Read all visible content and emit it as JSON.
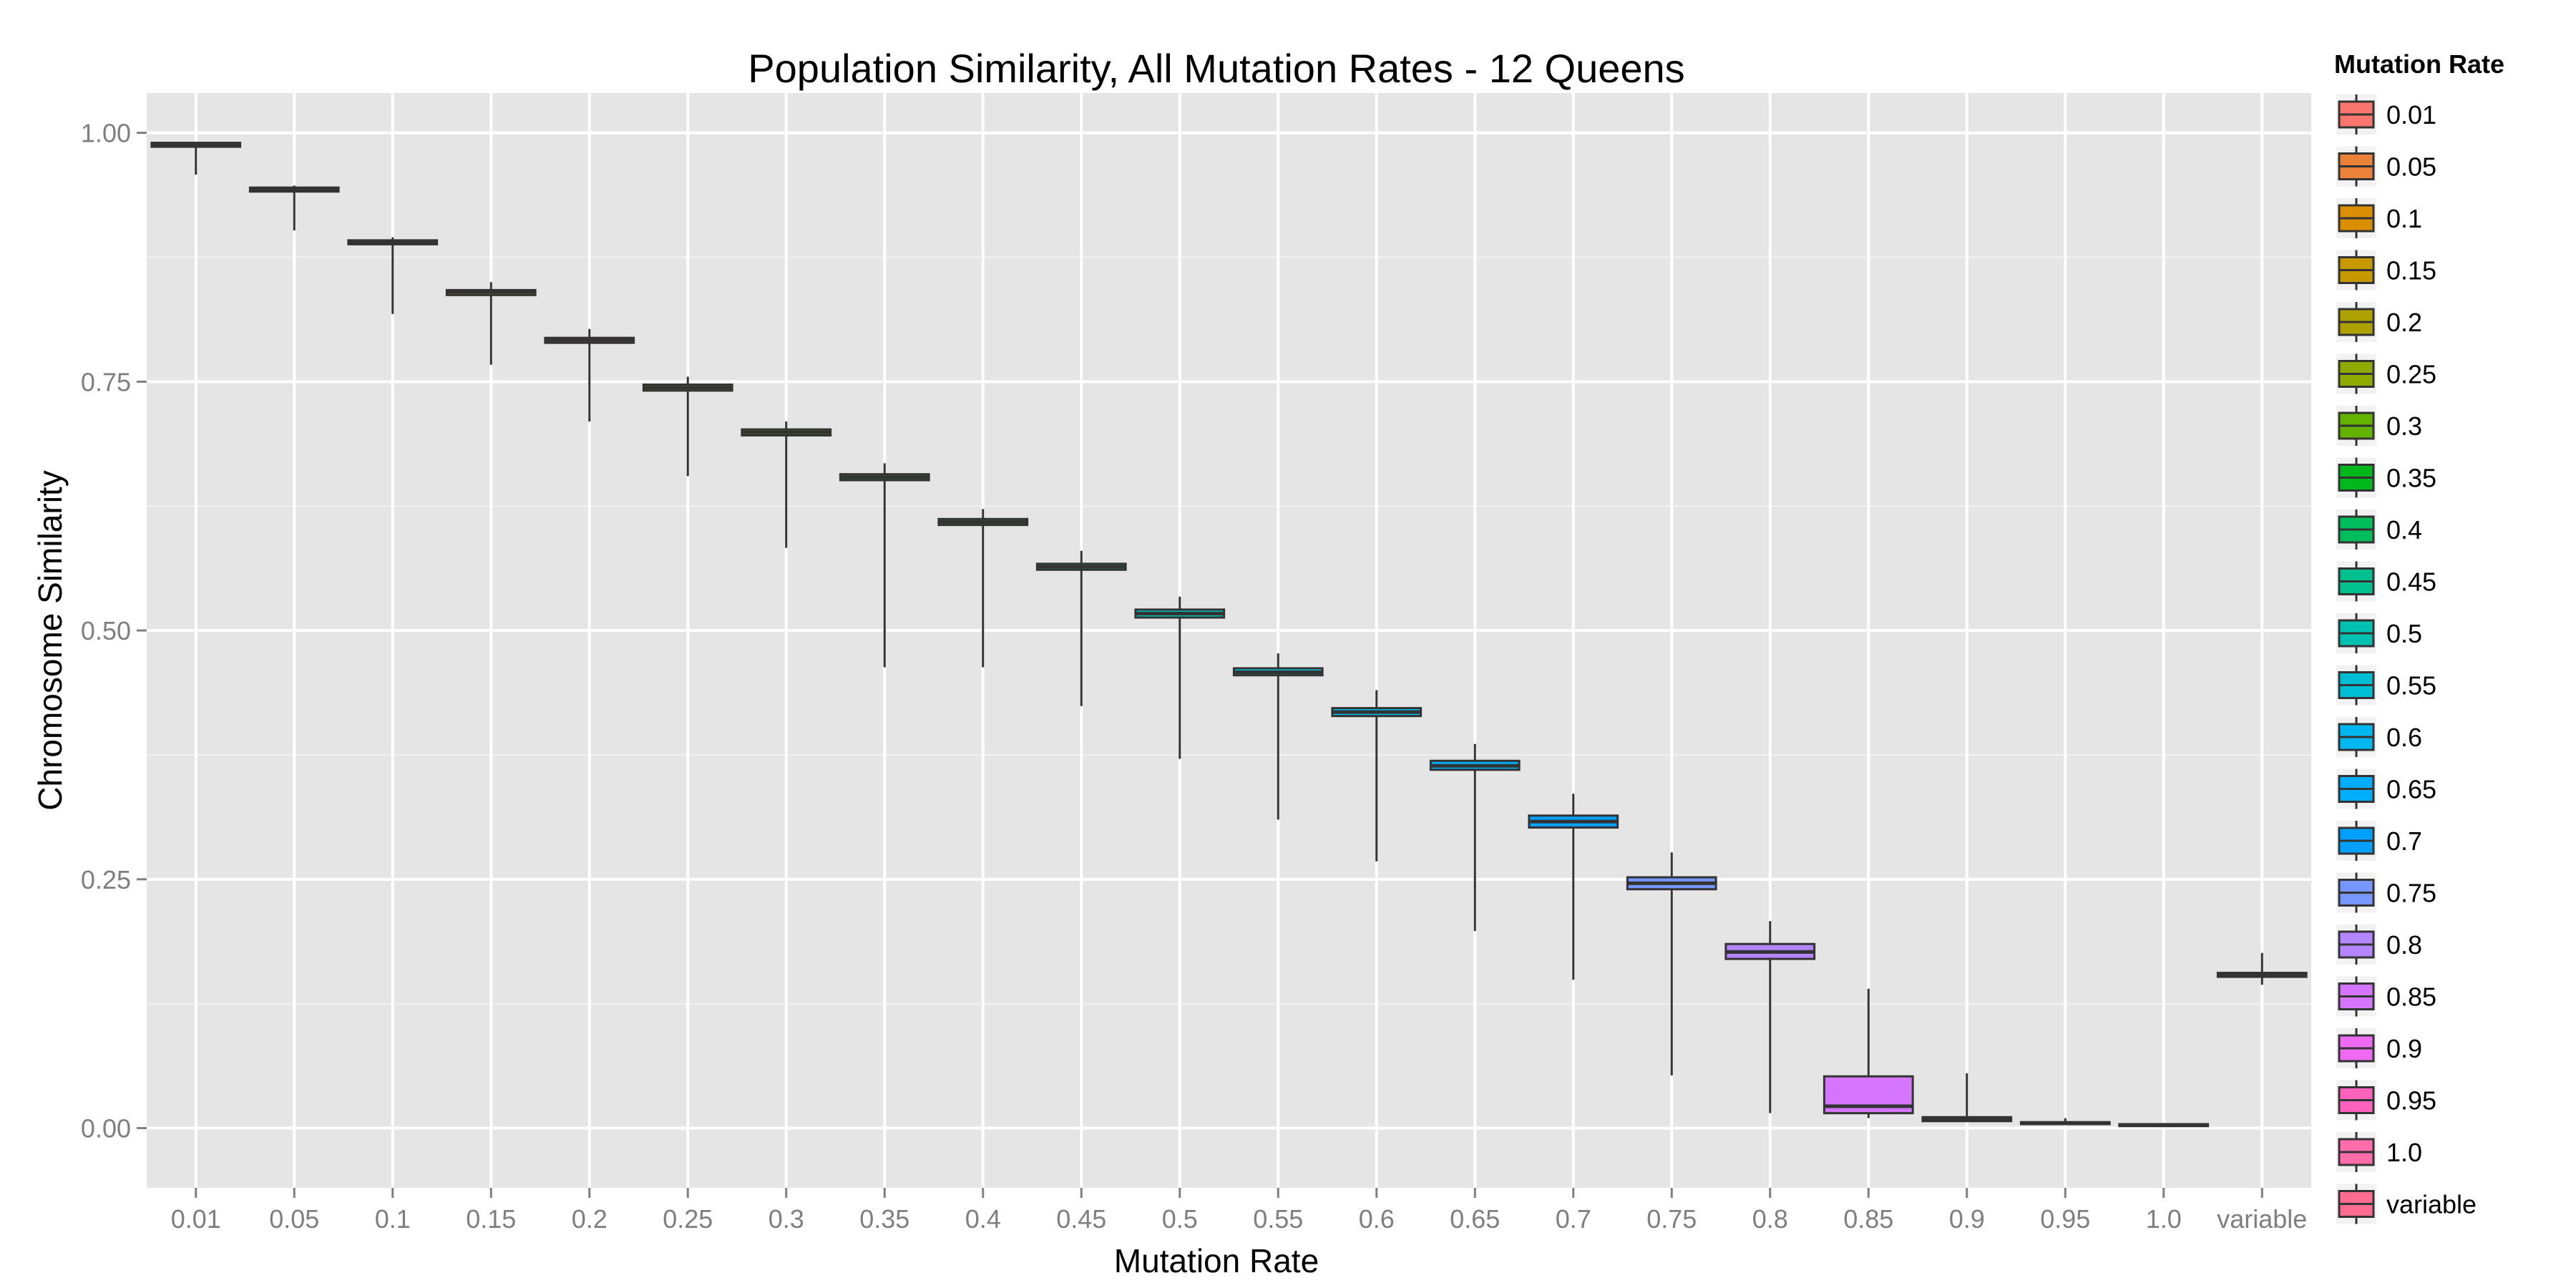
{
  "chart_data": {
    "type": "boxplot",
    "title": "Population Similarity, All Mutation Rates - 12 Queens",
    "xlabel": "Mutation Rate",
    "ylabel": "Chromosome Similarity",
    "ylim": [
      -0.06,
      1.04
    ],
    "yticks": [
      0.0,
      0.25,
      0.5,
      0.75,
      1.0
    ],
    "ytick_labels": [
      "0.00",
      "0.25",
      "0.50",
      "0.75",
      "1.00"
    ],
    "grid": true,
    "legend": {
      "title": "Mutation Rate",
      "position": "right"
    },
    "categories": [
      "0.01",
      "0.05",
      "0.1",
      "0.15",
      "0.2",
      "0.25",
      "0.3",
      "0.35",
      "0.4",
      "0.45",
      "0.5",
      "0.55",
      "0.6",
      "0.65",
      "0.7",
      "0.75",
      "0.8",
      "0.85",
      "0.9",
      "0.95",
      "1.0",
      "variable"
    ],
    "colors": [
      "#F8766D",
      "#EC8239",
      "#DB8E00",
      "#C79800",
      "#AEA200",
      "#8FAA00",
      "#64B200",
      "#00B81B",
      "#00BD5C",
      "#00C08D",
      "#00C1B2",
      "#00BFD4",
      "#00B8EF",
      "#00ADFA",
      "#00A0FF",
      "#7896FF",
      "#B385FF",
      "#D575FE",
      "#EE6AF1",
      "#FF62BC",
      "#FF6DAB",
      "#FF6C90"
    ],
    "boxes": [
      {
        "category": "0.01",
        "whisker_low": 0.958,
        "q1": 0.986,
        "median": 0.988,
        "q3": 0.99,
        "whisker_high": 0.991
      },
      {
        "category": "0.05",
        "whisker_low": 0.902,
        "q1": 0.941,
        "median": 0.943,
        "q3": 0.945,
        "whisker_high": 0.947
      },
      {
        "category": "0.1",
        "whisker_low": 0.818,
        "q1": 0.888,
        "median": 0.89,
        "q3": 0.892,
        "whisker_high": 0.895
      },
      {
        "category": "0.15",
        "whisker_low": 0.767,
        "q1": 0.837,
        "median": 0.84,
        "q3": 0.842,
        "whisker_high": 0.85
      },
      {
        "category": "0.2",
        "whisker_low": 0.71,
        "q1": 0.789,
        "median": 0.792,
        "q3": 0.794,
        "whisker_high": 0.803
      },
      {
        "category": "0.25",
        "whisker_low": 0.655,
        "q1": 0.741,
        "median": 0.744,
        "q3": 0.747,
        "whisker_high": 0.755
      },
      {
        "category": "0.3",
        "whisker_low": 0.583,
        "q1": 0.696,
        "median": 0.699,
        "q3": 0.702,
        "whisker_high": 0.71
      },
      {
        "category": "0.35",
        "whisker_low": 0.463,
        "q1": 0.651,
        "median": 0.654,
        "q3": 0.657,
        "whisker_high": 0.668
      },
      {
        "category": "0.4",
        "whisker_low": 0.463,
        "q1": 0.606,
        "median": 0.609,
        "q3": 0.612,
        "whisker_high": 0.622
      },
      {
        "category": "0.45",
        "whisker_low": 0.424,
        "q1": 0.561,
        "median": 0.564,
        "q3": 0.567,
        "whisker_high": 0.58
      },
      {
        "category": "0.5",
        "whisker_low": 0.371,
        "q1": 0.513,
        "median": 0.517,
        "q3": 0.521,
        "whisker_high": 0.534
      },
      {
        "category": "0.55",
        "whisker_low": 0.31,
        "q1": 0.455,
        "median": 0.458,
        "q3": 0.462,
        "whisker_high": 0.477
      },
      {
        "category": "0.6",
        "whisker_low": 0.268,
        "q1": 0.414,
        "median": 0.418,
        "q3": 0.422,
        "whisker_high": 0.44
      },
      {
        "category": "0.65",
        "whisker_low": 0.198,
        "q1": 0.36,
        "median": 0.364,
        "q3": 0.369,
        "whisker_high": 0.386
      },
      {
        "category": "0.7",
        "whisker_low": 0.149,
        "q1": 0.302,
        "median": 0.308,
        "q3": 0.314,
        "whisker_high": 0.336
      },
      {
        "category": "0.75",
        "whisker_low": 0.053,
        "q1": 0.24,
        "median": 0.246,
        "q3": 0.252,
        "whisker_high": 0.277
      },
      {
        "category": "0.8",
        "whisker_low": 0.015,
        "q1": 0.17,
        "median": 0.177,
        "q3": 0.185,
        "whisker_high": 0.208
      },
      {
        "category": "0.85",
        "whisker_low": 0.01,
        "q1": 0.015,
        "median": 0.022,
        "q3": 0.052,
        "whisker_high": 0.14
      },
      {
        "category": "0.9",
        "whisker_low": 0.006,
        "q1": 0.007,
        "median": 0.009,
        "q3": 0.011,
        "whisker_high": 0.055
      },
      {
        "category": "0.95",
        "whisker_low": 0.003,
        "q1": 0.004,
        "median": 0.005,
        "q3": 0.006,
        "whisker_high": 0.01
      },
      {
        "category": "1.0",
        "whisker_low": 0.002,
        "q1": 0.002,
        "median": 0.003,
        "q3": 0.004,
        "whisker_high": 0.005
      },
      {
        "category": "variable",
        "whisker_low": 0.144,
        "q1": 0.152,
        "median": 0.154,
        "q3": 0.156,
        "whisker_high": 0.176
      }
    ]
  }
}
